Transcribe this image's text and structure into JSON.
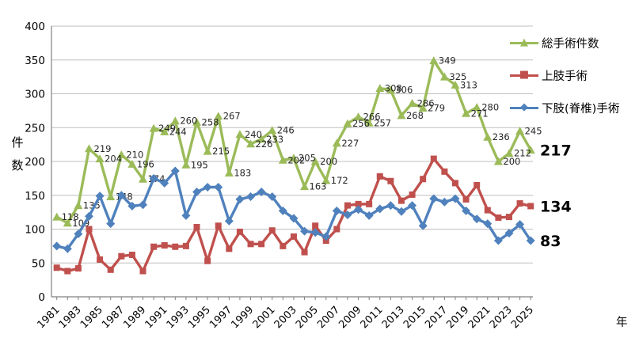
{
  "y_axis_title": "件\n数",
  "x_axis_title": "年",
  "legend": [
    {
      "label": "総手術件数",
      "color": "#9BBB59",
      "marker": "triangle",
      "glyph": "▲"
    },
    {
      "label": "上肢手術",
      "color": "#C0504D",
      "marker": "square",
      "glyph": "■"
    },
    {
      "label": "下肢(脊椎)手術",
      "color": "#4F81BD",
      "marker": "diamond",
      "glyph": "◆"
    }
  ],
  "chart_data": {
    "type": "line",
    "title": "",
    "xlabel": "年",
    "ylabel": "件数",
    "ylim": [
      0,
      400
    ],
    "y_ticks": [
      0,
      50,
      100,
      150,
      200,
      250,
      300,
      350,
      400
    ],
    "grid": "horizontal",
    "legend_position": "top-right",
    "x": [
      1981,
      1982,
      1983,
      1984,
      1985,
      1986,
      1987,
      1988,
      1989,
      1990,
      1991,
      1992,
      1993,
      1994,
      1995,
      1996,
      1997,
      1998,
      1999,
      2000,
      2001,
      2002,
      2003,
      2004,
      2005,
      2006,
      2007,
      2008,
      2009,
      2010,
      2011,
      2012,
      2013,
      2014,
      2015,
      2016,
      2017,
      2018,
      2019,
      2020,
      2021,
      2022,
      2023,
      2024,
      2025
    ],
    "x_tick_labels": [
      "1981",
      "1983",
      "1985",
      "1987",
      "1989",
      "1991",
      "1993",
      "1995",
      "1997",
      "1999",
      "2001",
      "2003",
      "2005",
      "2007",
      "2009",
      "2011",
      "2013",
      "2015",
      "2017",
      "2019",
      "2021",
      "2023",
      "2025"
    ],
    "series": [
      {
        "name": "総手術件数",
        "color": "#9BBB59",
        "marker": "triangle",
        "show_point_labels": true,
        "values": [
          118,
          109,
          135,
          219,
          204,
          148,
          210,
          196,
          174,
          249,
          244,
          260,
          195,
          258,
          215,
          267,
          183,
          240,
          226,
          233,
          246,
          202,
          205,
          163,
          200,
          172,
          227,
          256,
          266,
          257,
          308,
          306,
          268,
          286,
          279,
          349,
          325,
          313,
          271,
          280,
          236,
          200,
          212,
          245,
          217
        ]
      },
      {
        "name": "上肢手術",
        "color": "#C0504D",
        "marker": "square",
        "show_point_labels": false,
        "values": [
          43,
          38,
          42,
          100,
          55,
          40,
          60,
          62,
          38,
          74,
          76,
          74,
          75,
          103,
          53,
          105,
          71,
          96,
          78,
          78,
          98,
          75,
          89,
          66,
          105,
          83,
          100,
          135,
          137,
          137,
          178,
          171,
          142,
          151,
          174,
          204,
          185,
          168,
          144,
          165,
          128,
          117,
          118,
          138,
          134
        ]
      },
      {
        "name": "下肢(脊椎)手術",
        "color": "#4F81BD",
        "marker": "diamond",
        "show_point_labels": false,
        "values": [
          75,
          71,
          93,
          119,
          149,
          108,
          150,
          134,
          136,
          175,
          168,
          186,
          120,
          155,
          162,
          162,
          112,
          144,
          148,
          155,
          148,
          127,
          116,
          97,
          95,
          89,
          127,
          121,
          129,
          120,
          130,
          135,
          126,
          135,
          105,
          145,
          140,
          145,
          127,
          115,
          108,
          83,
          94,
          107,
          83
        ]
      }
    ],
    "end_labels": [
      {
        "series": "総手術件数",
        "text": "217"
      },
      {
        "series": "上肢手術",
        "text": "134"
      },
      {
        "series": "下肢(脊椎)手術",
        "text": "83"
      }
    ]
  }
}
